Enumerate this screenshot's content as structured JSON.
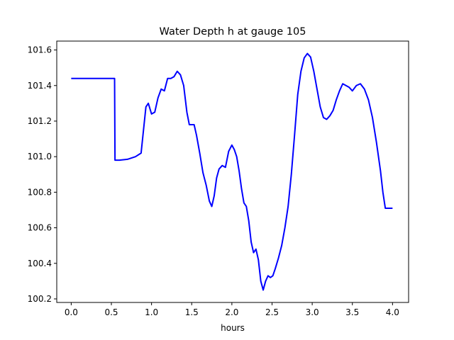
{
  "chart_data": {
    "type": "line",
    "title": "Water Depth h at gauge 105",
    "xlabel": "hours",
    "ylabel": "",
    "xlim": [
      -0.18,
      4.2
    ],
    "ylim": [
      100.18,
      101.65
    ],
    "grid": false,
    "xticks": [
      {
        "value": 0.0,
        "label": "0.0"
      },
      {
        "value": 0.5,
        "label": "0.5"
      },
      {
        "value": 1.0,
        "label": "1.0"
      },
      {
        "value": 1.5,
        "label": "1.5"
      },
      {
        "value": 2.0,
        "label": "2.0"
      },
      {
        "value": 2.5,
        "label": "2.5"
      },
      {
        "value": 3.0,
        "label": "3.0"
      },
      {
        "value": 3.5,
        "label": "3.5"
      },
      {
        "value": 4.0,
        "label": "4.0"
      }
    ],
    "yticks": [
      {
        "value": 100.2,
        "label": "100.2"
      },
      {
        "value": 100.4,
        "label": "100.4"
      },
      {
        "value": 100.6,
        "label": "100.6"
      },
      {
        "value": 100.8,
        "label": "100.8"
      },
      {
        "value": 101.0,
        "label": "101.0"
      },
      {
        "value": 101.2,
        "label": "101.2"
      },
      {
        "value": 101.4,
        "label": "101.4"
      },
      {
        "value": 101.6,
        "label": "101.6"
      }
    ],
    "series": [
      {
        "color": "#0000ff",
        "x": [
          0.0,
          0.1,
          0.2,
          0.3,
          0.4,
          0.5,
          0.54,
          0.545,
          0.6,
          0.7,
          0.8,
          0.87,
          0.9,
          0.93,
          0.96,
          1.0,
          1.04,
          1.08,
          1.12,
          1.16,
          1.2,
          1.24,
          1.28,
          1.32,
          1.36,
          1.4,
          1.44,
          1.47,
          1.5,
          1.53,
          1.56,
          1.6,
          1.64,
          1.68,
          1.72,
          1.75,
          1.78,
          1.81,
          1.84,
          1.88,
          1.92,
          1.96,
          2.0,
          2.03,
          2.06,
          2.09,
          2.12,
          2.15,
          2.18,
          2.21,
          2.24,
          2.27,
          2.3,
          2.33,
          2.36,
          2.39,
          2.42,
          2.45,
          2.48,
          2.51,
          2.54,
          2.58,
          2.62,
          2.66,
          2.7,
          2.74,
          2.78,
          2.82,
          2.86,
          2.9,
          2.94,
          2.98,
          3.02,
          3.06,
          3.1,
          3.14,
          3.18,
          3.22,
          3.26,
          3.3,
          3.34,
          3.38,
          3.42,
          3.46,
          3.5,
          3.55,
          3.6,
          3.65,
          3.7,
          3.75,
          3.8,
          3.85,
          3.88,
          3.91,
          3.94,
          3.97,
          4.0
        ],
        "y": [
          101.44,
          101.44,
          101.44,
          101.44,
          101.44,
          101.44,
          101.44,
          100.98,
          100.98,
          100.985,
          101.0,
          101.02,
          101.15,
          101.28,
          101.3,
          101.24,
          101.25,
          101.33,
          101.38,
          101.37,
          101.44,
          101.44,
          101.45,
          101.48,
          101.46,
          101.4,
          101.25,
          101.18,
          101.18,
          101.18,
          101.12,
          101.02,
          100.91,
          100.84,
          100.75,
          100.72,
          100.78,
          100.88,
          100.93,
          100.95,
          100.94,
          101.03,
          101.065,
          101.04,
          101.0,
          100.92,
          100.82,
          100.74,
          100.72,
          100.64,
          100.52,
          100.46,
          100.48,
          100.42,
          100.3,
          100.25,
          100.3,
          100.33,
          100.32,
          100.33,
          100.37,
          100.43,
          100.5,
          100.6,
          100.72,
          100.9,
          101.12,
          101.35,
          101.48,
          101.555,
          101.58,
          101.56,
          101.48,
          101.38,
          101.28,
          101.22,
          101.21,
          101.23,
          101.26,
          101.32,
          101.37,
          101.41,
          101.4,
          101.39,
          101.37,
          101.4,
          101.41,
          101.38,
          101.32,
          101.22,
          101.08,
          100.92,
          100.8,
          100.71,
          100.71,
          100.71,
          100.71
        ]
      }
    ]
  }
}
